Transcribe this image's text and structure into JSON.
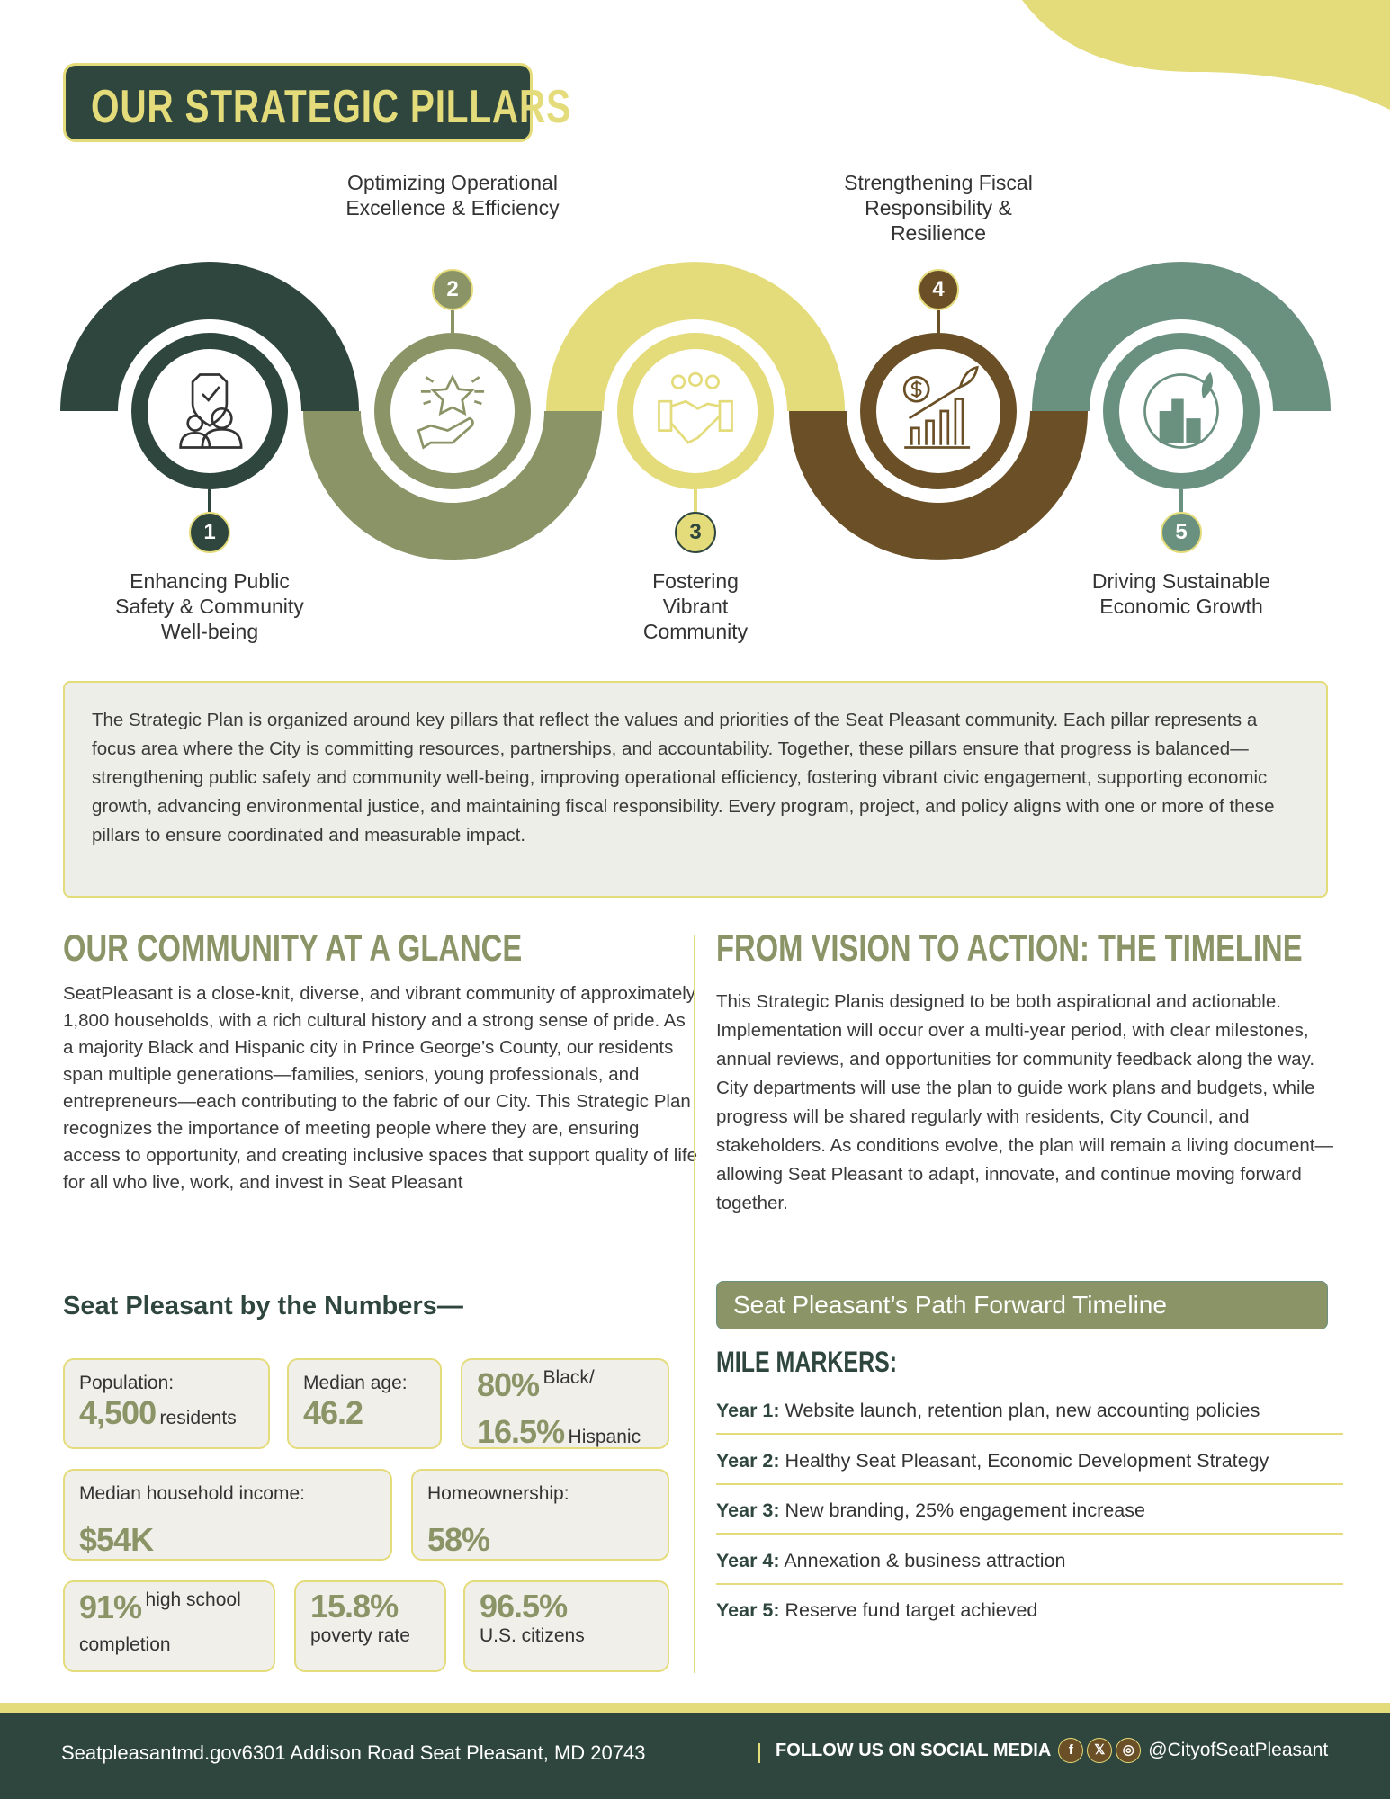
{
  "colors": {
    "dark_green": "#2f463e",
    "olive": "#8a9466",
    "yellow": "#e4db7a",
    "brown": "#6b5027",
    "teal": "#6a9080"
  },
  "title": "OUR STRATEGIC PILLARS",
  "pillars": [
    {
      "number": "1",
      "label": "Enhancing Public Safety & Community Well-being",
      "icon": "shield-people-icon",
      "color": "#2f463e"
    },
    {
      "number": "2",
      "label": "Optimizing Operational Excellence & Efficiency",
      "icon": "hand-star-icon",
      "color": "#8a9466"
    },
    {
      "number": "3",
      "label": "Fostering Vibrant Community",
      "icon": "handshake-community-icon",
      "color": "#e4db7a"
    },
    {
      "number": "4",
      "label": "Strengthening Fiscal Responsibility & Resilience",
      "icon": "finance-growth-icon",
      "color": "#6b5027"
    },
    {
      "number": "5",
      "label": "Driving Sustainable Economic Growth",
      "icon": "green-city-icon",
      "color": "#6a9080"
    }
  ],
  "intro": "The Strategic Plan is organized around key pillars that reflect the values and priorities of the Seat Pleasant community. Each pillar represents a focus area where the City is committing resources, partnerships, and accountability. Together, these pillars ensure that progress is balanced—strengthening public safety and community well-being, improving operational efficiency, fostering vibrant civic engagement, supporting economic growth, advancing environmental justice, and maintaining fiscal responsibility. Every program, project, and policy aligns with one or more of these pillars to ensure coordinated and measurable impact.",
  "community": {
    "heading": "OUR COMMUNITY AT A GLANCE",
    "text": "SeatPleasant is a close-knit, diverse, and vibrant community of approximately 1,800 households, with a rich cultural history and a strong sense of pride. As a majority Black and Hispanic city in Prince George’s County, our residents span multiple generations—families, seniors, young professionals, and entrepreneurs—each contributing to the fabric of our City. This Strategic Plan recognizes the importance of meeting people where they are, ensuring access to opportunity, and creating inclusive spaces that support quality of life for all who live, work, and invest in Seat Pleasant",
    "numbers_heading": "Seat Pleasant by the Numbers—",
    "stats": {
      "population": {
        "label": "Population:",
        "value": "4,500",
        "unit": "residents"
      },
      "median_age": {
        "label": "Median age:",
        "value": "46.2"
      },
      "race": {
        "value1": "80%",
        "label1": "Black/",
        "value2": "16.5%",
        "label2": "Hispanic"
      },
      "income": {
        "label": "Median household income:",
        "value": "$54K"
      },
      "homeownership": {
        "label": "Homeownership:",
        "value": "58%"
      },
      "highschool": {
        "value": "91%",
        "label1": "high school",
        "label2": "completion"
      },
      "poverty": {
        "value": "15.8%",
        "label": "poverty rate"
      },
      "citizens": {
        "value": "96.5%",
        "label": "U.S. citizens"
      }
    }
  },
  "timeline": {
    "heading": "FROM VISION TO ACTION: THE TIMELINE",
    "text": "This Strategic Planis designed to be both aspirational and actionable. Implementation will occur over a multi-year period, with clear milestones, annual reviews, and opportunities for community feedback along the way. City departments will use the plan to guide work plans and budgets, while progress will be shared regularly with residents, City Council, and stakeholders. As conditions evolve, the plan will remain a living document—allowing Seat Pleasant to adapt, innovate, and continue moving forward together.",
    "bar": "Seat Pleasant’s Path Forward Timeline",
    "markers_heading": "MILE MARKERS:",
    "years": [
      {
        "label": "Year 1:",
        "text": "Website launch, retention plan, new accounting policies"
      },
      {
        "label": "Year 2:",
        "text": "Healthy Seat Pleasant, Economic Development Strategy"
      },
      {
        "label": "Year 3:",
        "text": "New branding, 25% engagement increase"
      },
      {
        "label": "Year 4:",
        "text": "Annexation & business attraction"
      },
      {
        "label": "Year 5:",
        "text": "Reserve fund target achieved"
      }
    ]
  },
  "footer": {
    "website": "Seatpleasantmd.gov",
    "address": "6301 Addison Road Seat Pleasant, MD 20743",
    "follow": "FOLLOW US ON SOCIAL MEDIA",
    "social": [
      {
        "icon": "facebook-icon",
        "glyph": "f"
      },
      {
        "icon": "x-icon",
        "glyph": "𝕏"
      },
      {
        "icon": "instagram-icon",
        "glyph": "◎"
      }
    ],
    "handle": "@CityofSeatPleasant"
  }
}
